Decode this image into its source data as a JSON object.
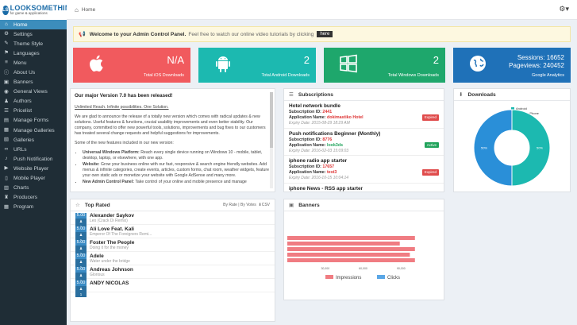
{
  "brand": {
    "logo_mark": "LS",
    "name": "LOOKSOMETHING",
    "tagline": "for game & applications"
  },
  "topbar": {
    "breadcrumb": "Home"
  },
  "sidebar": {
    "items": [
      {
        "label": "Home",
        "icon": "home-icon",
        "glyph": "⌂"
      },
      {
        "label": "Settings",
        "icon": "gear-icon",
        "glyph": "⚙"
      },
      {
        "label": "Theme Style",
        "icon": "brush-icon",
        "glyph": "✎"
      },
      {
        "label": "Languages",
        "icon": "flag-icon",
        "glyph": "⚑"
      },
      {
        "label": "Menu",
        "icon": "menu-icon",
        "glyph": "≡"
      },
      {
        "label": "About Us",
        "icon": "info-icon",
        "glyph": "ⓘ"
      },
      {
        "label": "Banners",
        "icon": "image-icon",
        "glyph": "▣"
      },
      {
        "label": "General Views",
        "icon": "eye-icon",
        "glyph": "◉"
      },
      {
        "label": "Authors",
        "icon": "user-icon",
        "glyph": "♟"
      },
      {
        "label": "Pricelist",
        "icon": "list-icon",
        "glyph": "☰"
      },
      {
        "label": "Manage Forms",
        "icon": "form-icon",
        "glyph": "▤"
      },
      {
        "label": "Manage Galleries",
        "icon": "gallery-icon",
        "glyph": "▦"
      },
      {
        "label": "Galleries",
        "icon": "photo-icon",
        "glyph": "▧"
      },
      {
        "label": "URLs",
        "icon": "link-icon",
        "glyph": "∞"
      },
      {
        "label": "Push Notification",
        "icon": "bell-icon",
        "glyph": "♪"
      },
      {
        "label": "Website Player",
        "icon": "play-icon",
        "glyph": "▶"
      },
      {
        "label": "Mobile Player",
        "icon": "mobile-icon",
        "glyph": "▯"
      },
      {
        "label": "Charts",
        "icon": "chart-icon",
        "glyph": "▥"
      },
      {
        "label": "Producers",
        "icon": "users-icon",
        "glyph": "♜"
      },
      {
        "label": "Program",
        "icon": "calendar-icon",
        "glyph": "▦"
      }
    ]
  },
  "welcome": {
    "title": "Welcome to your Admin Control Panel.",
    "text": "Feel free to watch our online video tutorials by clicking",
    "button": "here"
  },
  "tiles": [
    {
      "value": "N/A",
      "label": "Total iOS Downloads",
      "color": "#f15a5e",
      "icon": "apple-icon"
    },
    {
      "value": "2",
      "label": "Total Android Downloads",
      "color": "#1cb9b0",
      "icon": "android-icon"
    },
    {
      "value": "2",
      "label": "Total Windows Downloads",
      "color": "#1ea76c",
      "icon": "windows-icon"
    },
    {
      "sessions": "Sessions: 16652",
      "pageviews": "Pageviews: 240452",
      "label": "Google Analytics",
      "color": "#1f71b8",
      "icon": "globe-icon"
    }
  ],
  "news": {
    "title": "Our major Version 7.0 has been released!",
    "tagline": "Unlimited Reach. Infinite possibilities. One Solution.",
    "p1": "We are glad to announce the release of a totally new version which comes with radical updates & new solutions. Useful features & functions, crucial usability improvements and even better stability. Our company, committed to offer new powerful tools, solutions, improvements and bug fixes to our customers has treated several change requests and helpful suggestions for improvements.",
    "p2": "Some of the new features included in our new version:",
    "bullets": [
      {
        "k": "Universal Windows Platform:",
        "v": "Reach every single device running on Windows 10 - mobile, tablet, desktop, laptop, or elsewhere, with one app."
      },
      {
        "k": "Website:",
        "v": "Grow your business online with our fast, responsive & search engine friendly websites. Add menus & infinite categories, create events, articles, custom forms, chat room, weather widgets, feature your own static ads or monetize your website with Google AdSense and many more."
      },
      {
        "k": "New Admin Control Panel:",
        "v": "Take control of your online and mobile presence and manage"
      }
    ]
  },
  "subscriptions": {
    "title": "Subscriptions",
    "items": [
      {
        "name": "Hotel network bundle",
        "id_label": "Subscription ID:",
        "id": "2441",
        "app_label": "Application Name:",
        "app": "dokimastiko Hotel",
        "expiry": "Expiry Date: 2015-08-29 18:29 AM",
        "status": "Expired",
        "status_color": "#e04c4c"
      },
      {
        "name": "Push notifications Beginner (Monthly)",
        "id_label": "Subscription ID:",
        "id": "8776",
        "app_label": "Application Name:",
        "app": "look3ds",
        "expiry": "Expiry Date: 2016-02-03 15:09:03",
        "status": "Active",
        "status_color": "#21a35b"
      },
      {
        "name": "iphone radio app starter",
        "id_label": "Subscription ID:",
        "id": "17657",
        "app_label": "Application Name:",
        "app": "test3",
        "expiry": "Expiry Date: 2016-10-15 10:04:14",
        "status": "Expired",
        "status_color": "#e04c4c"
      },
      {
        "name": "iphone News - RSS app starter",
        "id_label": "",
        "id": "",
        "app_label": "",
        "app": "",
        "expiry": "",
        "status": "",
        "status_color": ""
      }
    ]
  },
  "downloads": {
    "title": "Downloads",
    "legend": [
      "Android",
      "Windows Phone"
    ],
    "colors": [
      "#1cb9b0",
      "#2a8fd8"
    ]
  },
  "top_rated": {
    "title": "Top Rated",
    "options": "By Rate | By Votes",
    "csv": "CSV",
    "items": [
      {
        "score": "5.00",
        "votes": "1",
        "name": "Alexander Saykov",
        "sub": "Leo (Crack Di Remix)"
      },
      {
        "score": "5.00",
        "votes": "1",
        "name": "Ali Love Feat. Kali",
        "sub": "Emperor Of The Foreigners Remi..."
      },
      {
        "score": "5.00",
        "votes": "1",
        "name": "Foster The People",
        "sub": "Doing it for the money"
      },
      {
        "score": "5.00",
        "votes": "1",
        "name": "Adele",
        "sub": "Water under the bridge"
      },
      {
        "score": "5.00",
        "votes": "1",
        "name": "Andreas Johnson",
        "sub": "Glorious"
      },
      {
        "score": "5.00",
        "votes": "1",
        "name": "ANDY NICOLAS",
        "sub": ""
      }
    ]
  },
  "banners": {
    "title": "Banners",
    "legend": [
      "Impressions",
      "Clicks"
    ]
  },
  "chart_data": [
    {
      "type": "pie",
      "title": "Downloads",
      "categories": [
        "Android",
        "Windows Phone"
      ],
      "values": [
        50,
        50
      ],
      "data_labels": [
        "50%",
        "50%"
      ],
      "legend": "top-left"
    },
    {
      "type": "bar",
      "title": "Banners",
      "orientation": "horizontal",
      "categories": [
        "1",
        "2",
        "3",
        "4",
        "5"
      ],
      "series": [
        {
          "name": "Impressions",
          "values": [
            101000,
            89000,
            101000,
            97000,
            101000
          ],
          "color": "#f07c82"
        },
        {
          "name": "Clicks",
          "values": [
            0,
            0,
            0,
            0,
            0
          ],
          "color": "#5aa7e6"
        }
      ],
      "xticks": [
        "30,000",
        "60,000",
        "90,000"
      ],
      "xlim": [
        0,
        120000
      ],
      "legend": "bottom"
    }
  ]
}
